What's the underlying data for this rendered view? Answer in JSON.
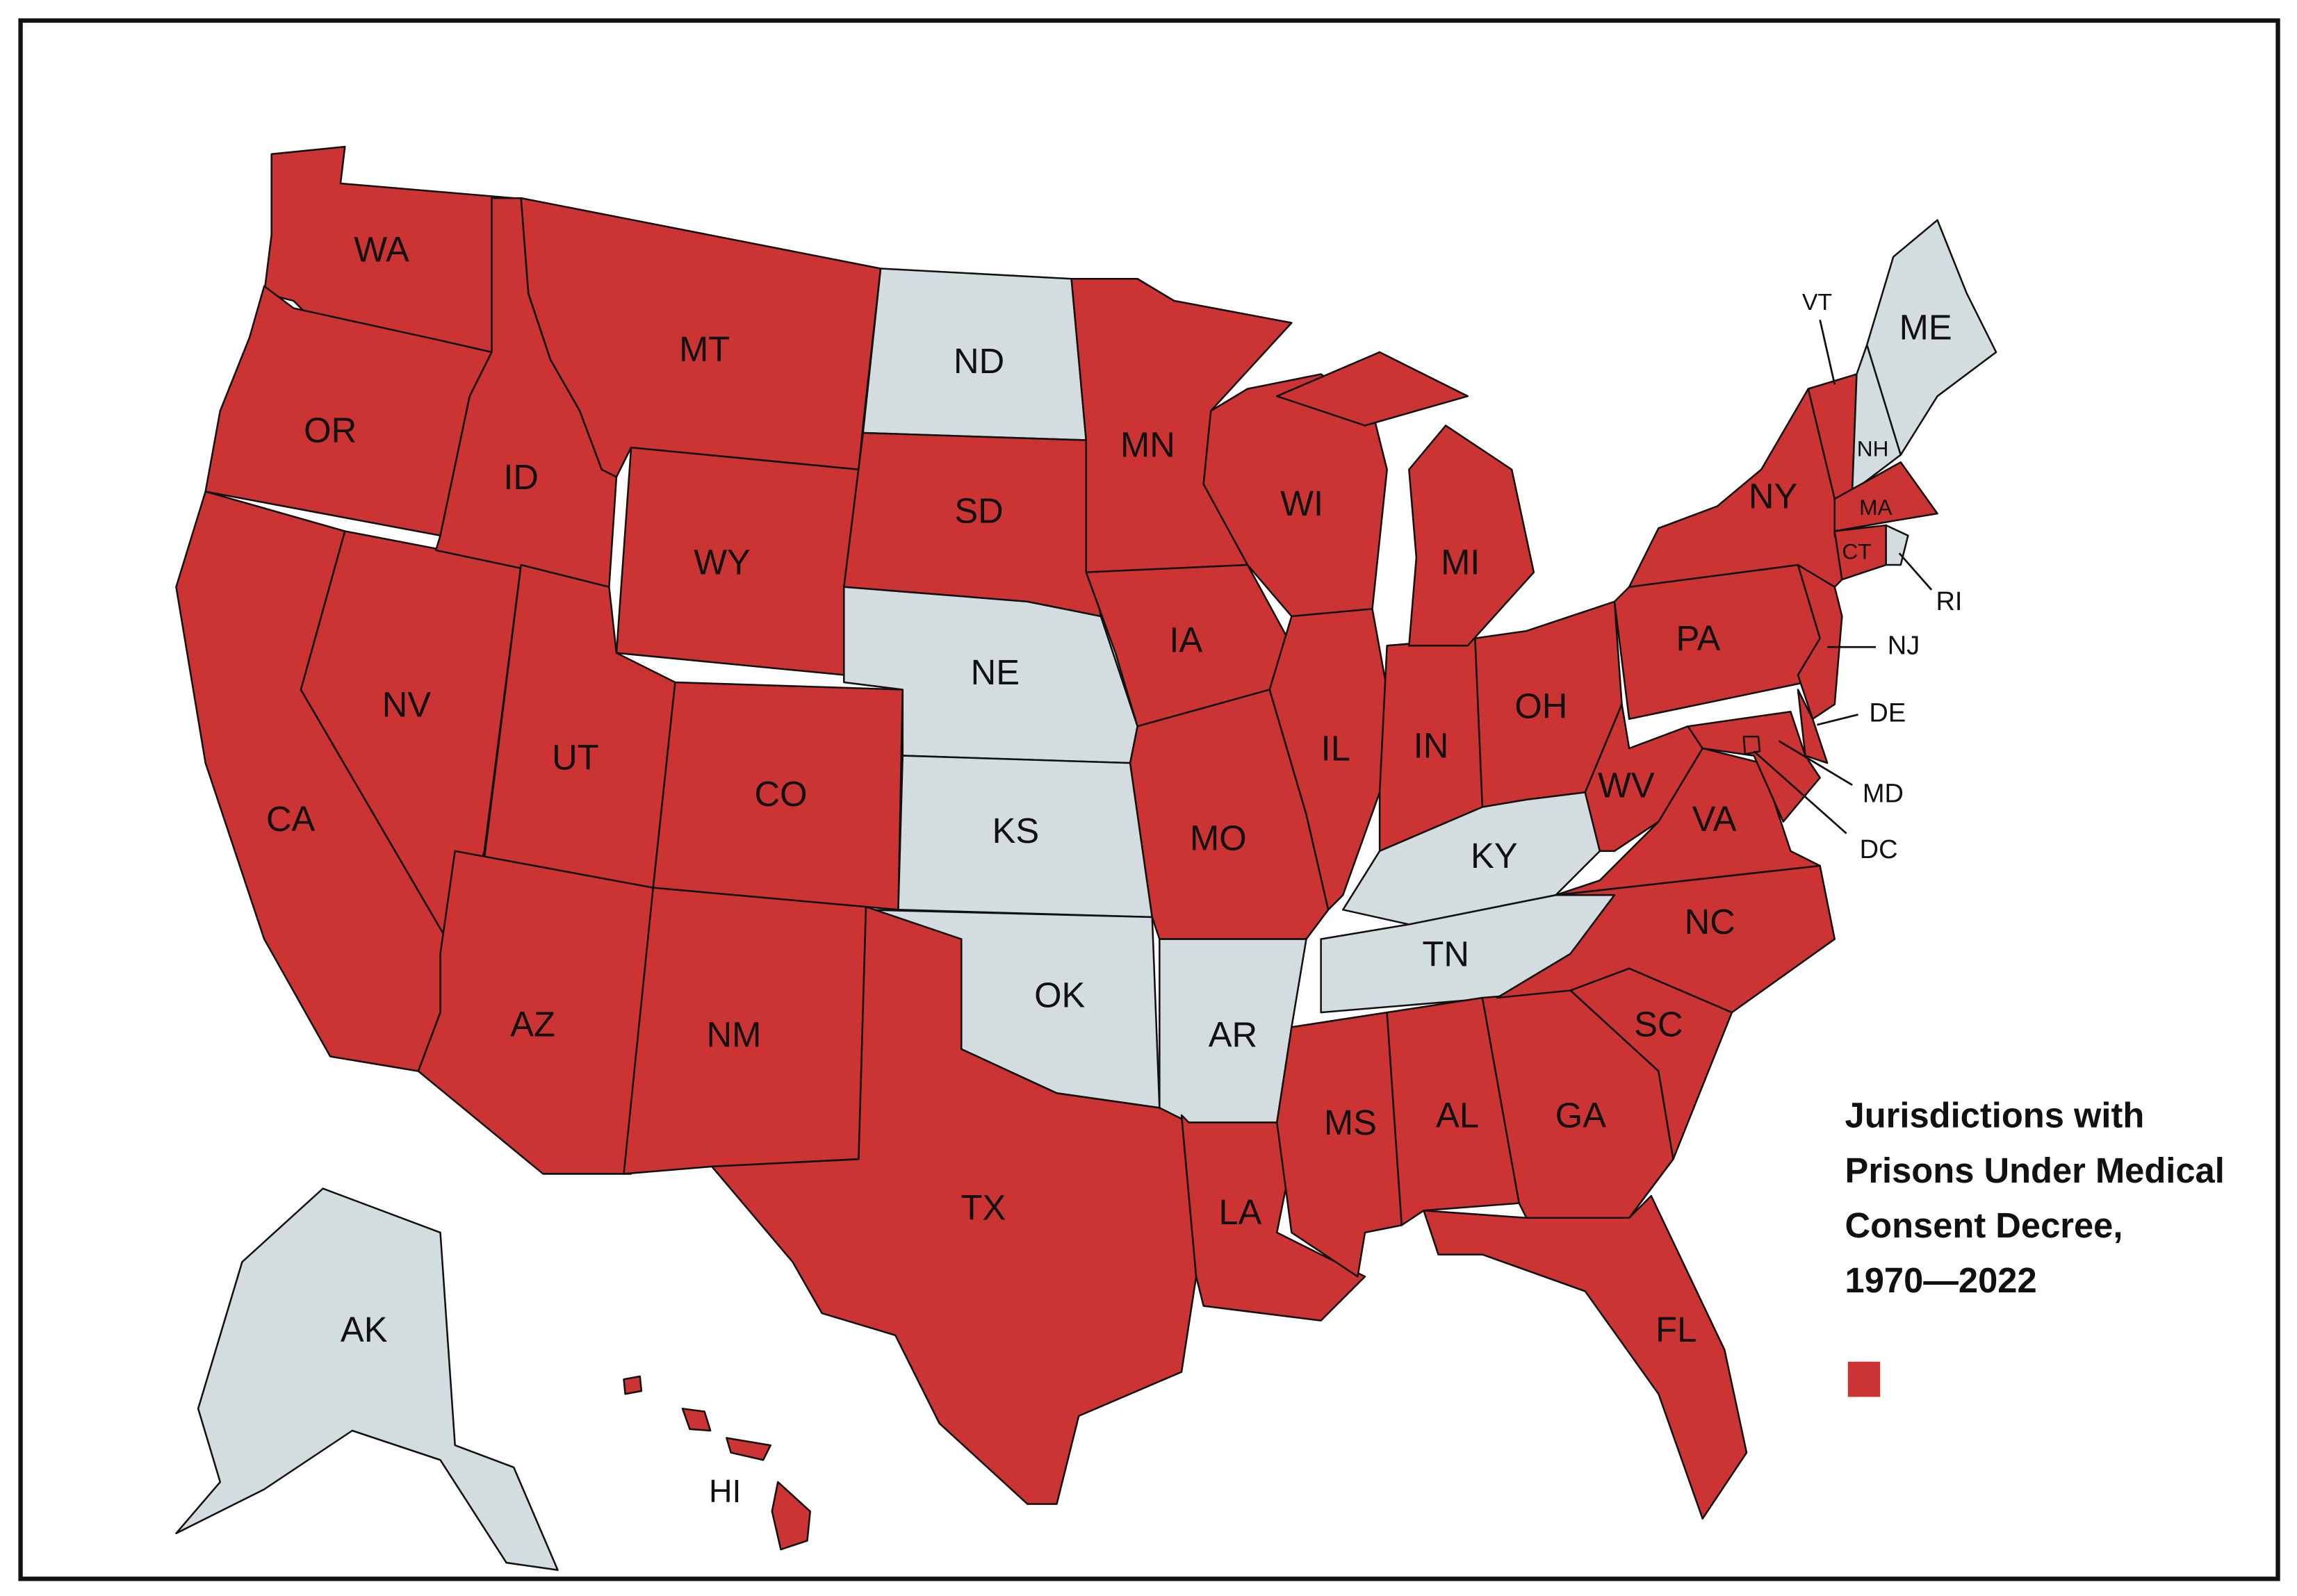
{
  "map": {
    "colors": {
      "decree": "#cc3333",
      "other": "#d3dcdf"
    },
    "legend": {
      "title_lines": [
        "Jurisdictions with",
        "Prisons Under Medical",
        "Consent Decree,",
        "1970—2022"
      ]
    },
    "states": [
      {
        "label": "WA",
        "decree": true
      },
      {
        "label": "OR",
        "decree": true
      },
      {
        "label": "CA",
        "decree": true
      },
      {
        "label": "NV",
        "decree": true
      },
      {
        "label": "ID",
        "decree": true
      },
      {
        "label": "MT",
        "decree": true
      },
      {
        "label": "WY",
        "decree": true
      },
      {
        "label": "UT",
        "decree": true
      },
      {
        "label": "CO",
        "decree": true
      },
      {
        "label": "AZ",
        "decree": true
      },
      {
        "label": "NM",
        "decree": true
      },
      {
        "label": "ND",
        "decree": false
      },
      {
        "label": "SD",
        "decree": true
      },
      {
        "label": "NE",
        "decree": false
      },
      {
        "label": "KS",
        "decree": false
      },
      {
        "label": "OK",
        "decree": false
      },
      {
        "label": "TX",
        "decree": true
      },
      {
        "label": "MN",
        "decree": true
      },
      {
        "label": "IA",
        "decree": true
      },
      {
        "label": "MO",
        "decree": true
      },
      {
        "label": "AR",
        "decree": false
      },
      {
        "label": "LA",
        "decree": true
      },
      {
        "label": "WI",
        "decree": true
      },
      {
        "label": "IL",
        "decree": true
      },
      {
        "label": "IN",
        "decree": true
      },
      {
        "label": "MI",
        "decree": true
      },
      {
        "label": "OH",
        "decree": true
      },
      {
        "label": "KY",
        "decree": false
      },
      {
        "label": "TN",
        "decree": false
      },
      {
        "label": "MS",
        "decree": true
      },
      {
        "label": "AL",
        "decree": true
      },
      {
        "label": "GA",
        "decree": true
      },
      {
        "label": "FL",
        "decree": true
      },
      {
        "label": "SC",
        "decree": true
      },
      {
        "label": "NC",
        "decree": true
      },
      {
        "label": "VA",
        "decree": true
      },
      {
        "label": "WV",
        "decree": true
      },
      {
        "label": "PA",
        "decree": true
      },
      {
        "label": "NY",
        "decree": true
      },
      {
        "label": "VT",
        "decree": true
      },
      {
        "label": "NH",
        "decree": false
      },
      {
        "label": "ME",
        "decree": false
      },
      {
        "label": "MA",
        "decree": true
      },
      {
        "label": "CT",
        "decree": true
      },
      {
        "label": "RI",
        "decree": false
      },
      {
        "label": "NJ",
        "decree": true
      },
      {
        "label": "DE",
        "decree": true
      },
      {
        "label": "MD",
        "decree": true
      },
      {
        "label": "DC",
        "decree": true
      },
      {
        "label": "AK",
        "decree": false
      },
      {
        "label": "HI",
        "decree": true
      }
    ]
  }
}
